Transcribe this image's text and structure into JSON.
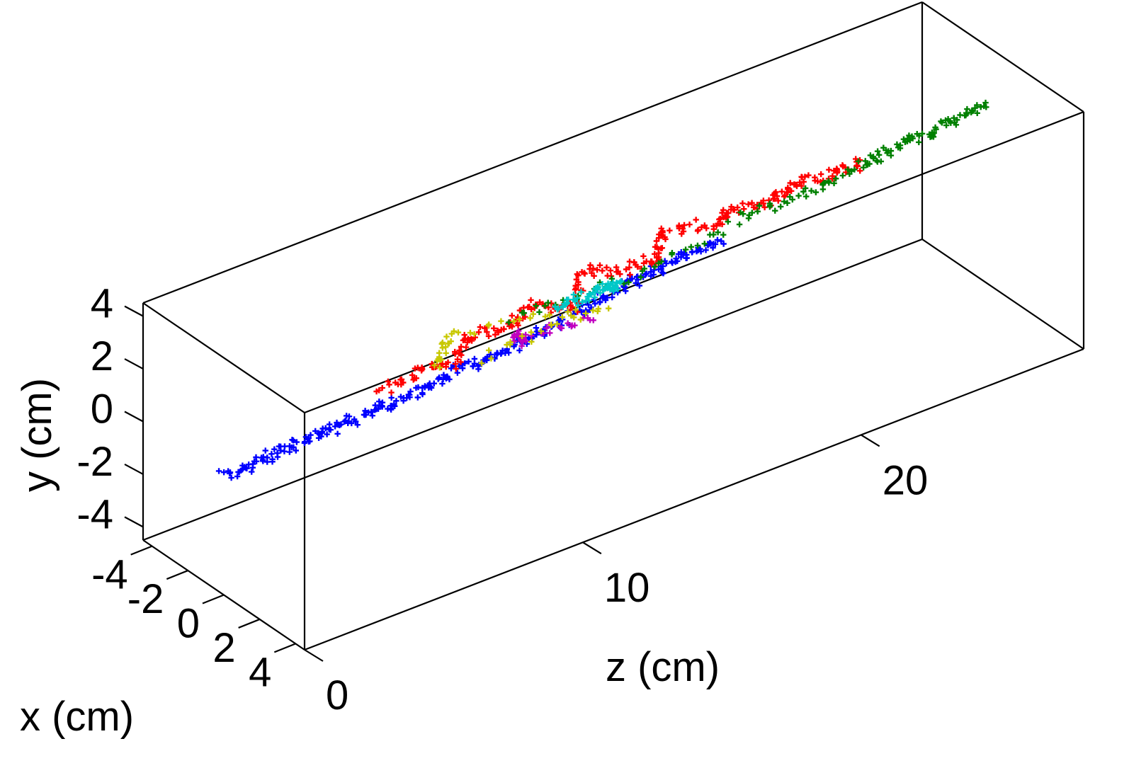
{
  "chart_data": {
    "type": "scatter",
    "projection": "3d",
    "title": "",
    "xlabel": "x (cm)",
    "ylabel": "y (cm)",
    "zlabel": "z (cm)",
    "xlim": [
      -4.5,
      4.5
    ],
    "ylim": [
      -4.5,
      4.5
    ],
    "zlim": [
      0,
      28
    ],
    "x_ticks": [
      4,
      2,
      0,
      -2,
      -4
    ],
    "y_ticks": [
      4,
      2,
      0,
      -2,
      -4
    ],
    "z_ticks": [
      0,
      10,
      20
    ],
    "x_tick_labels": [
      "4",
      "2",
      "0",
      "-2",
      "-4"
    ],
    "y_tick_labels": [
      "4",
      "2",
      "0",
      "-2",
      "-4"
    ],
    "z_tick_labels": [
      "0",
      "10",
      "20"
    ],
    "grid": false,
    "legend": "none",
    "series": [
      {
        "color": "#0000ff",
        "points": [
          [
            0,
            0,
            0
          ],
          [
            0.1,
            0.1,
            1
          ],
          [
            0.1,
            0.2,
            2
          ],
          [
            0.2,
            0.3,
            3
          ],
          [
            0.2,
            0.4,
            4
          ],
          [
            0.3,
            0.5,
            5
          ],
          [
            0.3,
            0.6,
            6
          ],
          [
            0.5,
            0.8,
            7
          ],
          [
            0.6,
            1.0,
            8
          ],
          [
            0.7,
            1.1,
            9
          ],
          [
            0.8,
            1.3,
            10
          ],
          [
            0.9,
            1.5,
            11
          ],
          [
            1.0,
            1.7,
            12
          ],
          [
            1.0,
            2.0,
            13
          ],
          [
            1.1,
            2.2,
            14
          ],
          [
            1.2,
            2.4,
            15
          ],
          [
            1.3,
            2.6,
            16
          ],
          [
            1.3,
            2.7,
            17
          ]
        ]
      },
      {
        "color": "#ff0000",
        "points": [
          [
            -0.5,
            0.5,
            6
          ],
          [
            0,
            1.2,
            7
          ],
          [
            0.5,
            1.3,
            8
          ],
          [
            -0.3,
            1.5,
            9
          ],
          [
            0.4,
            1.8,
            10
          ],
          [
            0,
            2.0,
            11
          ],
          [
            0.8,
            1.9,
            12
          ],
          [
            -0.2,
            2.4,
            13
          ],
          [
            0.6,
            2.4,
            14
          ],
          [
            1.0,
            2.6,
            15
          ],
          [
            -0.4,
            2.6,
            16
          ],
          [
            0.8,
            3.0,
            17
          ],
          [
            0.5,
            3.0,
            18
          ],
          [
            1.1,
            3.2,
            19
          ],
          [
            0.7,
            3.3,
            20
          ],
          [
            1.2,
            3.5,
            21
          ],
          [
            1.5,
            3.6,
            22
          ]
        ]
      },
      {
        "color": "#008000",
        "points": [
          [
            0.5,
            2.2,
            10
          ],
          [
            1.2,
            2.4,
            14
          ],
          [
            1.0,
            2.9,
            18
          ],
          [
            1.3,
            3.2,
            20
          ],
          [
            1.5,
            3.6,
            22
          ],
          [
            1.6,
            3.8,
            23
          ],
          [
            1.8,
            4.0,
            24
          ],
          [
            2.0,
            4.3,
            25
          ],
          [
            2.1,
            4.5,
            26
          ]
        ]
      },
      {
        "color": "#00c8c8",
        "points": [
          [
            1.5,
            2.6,
            11
          ],
          [
            1.6,
            2.7,
            12
          ],
          [
            1.8,
            2.8,
            13
          ],
          [
            1.2,
            2.5,
            12.5
          ]
        ]
      },
      {
        "color": "#c000c0",
        "points": [
          [
            2.2,
            2.6,
            9
          ],
          [
            2.0,
            2.3,
            9.5
          ],
          [
            2.8,
            2.6,
            11.5
          ]
        ]
      },
      {
        "color": "#c8c800",
        "points": [
          [
            1.0,
            1.8,
            7
          ],
          [
            -1.2,
            1.2,
            9
          ],
          [
            2.5,
            2.7,
            12
          ],
          [
            0.3,
            1.0,
            9
          ]
        ]
      }
    ]
  }
}
